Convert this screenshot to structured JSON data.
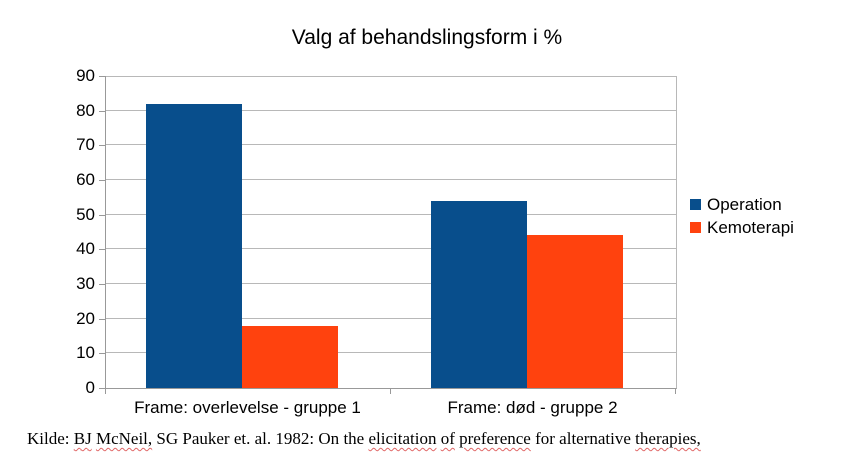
{
  "chart_data": {
    "type": "bar",
    "title": "Valg af behandslingsform i %",
    "categories": [
      "Frame: overlevelse - gruppe 1",
      "Frame: død - gruppe 2"
    ],
    "series": [
      {
        "name": "Operation",
        "color": "#084e8c",
        "values": [
          82,
          54
        ]
      },
      {
        "name": "Kemoterapi",
        "color": "#ff420e",
        "values": [
          18,
          44
        ]
      }
    ],
    "ylim": [
      0,
      90
    ],
    "yticks": [
      0,
      10,
      20,
      30,
      40,
      50,
      60,
      70,
      80,
      90
    ],
    "xlabel": "",
    "ylabel": "",
    "grid": "horizontal",
    "legend_position": "right"
  },
  "colors": {
    "background": "#ffffff",
    "gridline": "#b8b8b8",
    "axis": "#999999",
    "text": "#000000",
    "spellcheck_squiggle": "#e06666"
  },
  "source": {
    "tokens": [
      {
        "text": "Kilde:",
        "misspelled": false
      },
      {
        "text": "BJ",
        "misspelled": true
      },
      {
        "text": "McNeil,",
        "misspelled": true
      },
      {
        "text": "SG",
        "misspelled": false
      },
      {
        "text": "Pauker",
        "misspelled": false
      },
      {
        "text": "et.",
        "misspelled": false
      },
      {
        "text": "al.",
        "misspelled": false
      },
      {
        "text": "1982:",
        "misspelled": false
      },
      {
        "text": "On",
        "misspelled": false
      },
      {
        "text": "the",
        "misspelled": false
      },
      {
        "text": "elicitation",
        "misspelled": true
      },
      {
        "text": "of",
        "misspelled": true
      },
      {
        "text": "preference",
        "misspelled": true
      },
      {
        "text": "for",
        "misspelled": false
      },
      {
        "text": "alternative",
        "misspelled": false
      },
      {
        "text": "therapies,",
        "misspelled": true
      }
    ]
  }
}
